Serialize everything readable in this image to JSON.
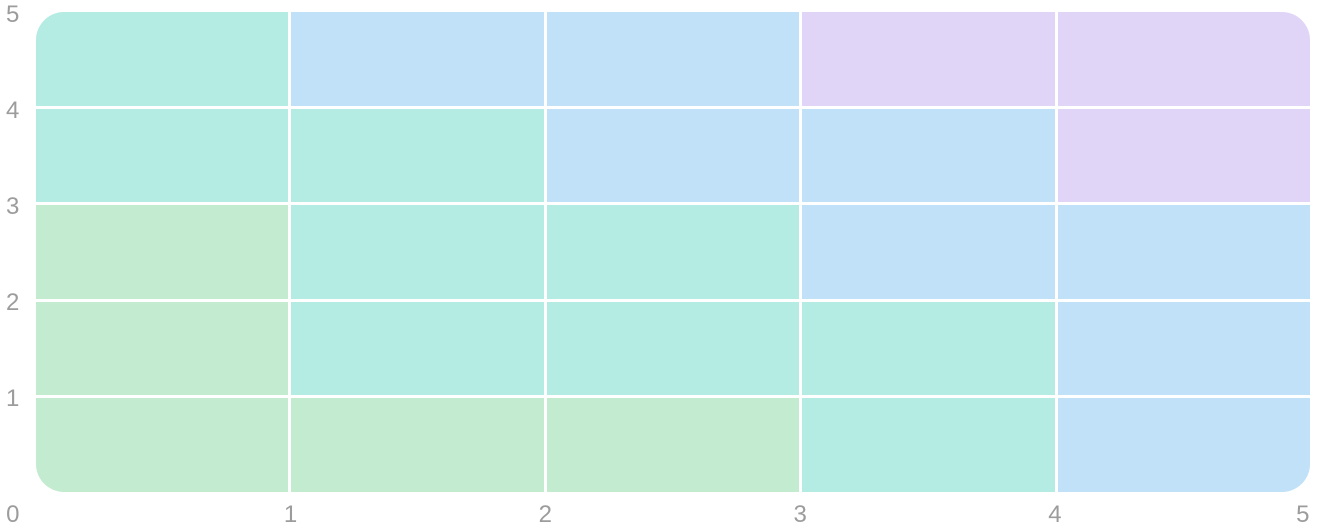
{
  "chart_data": {
    "type": "heatmap",
    "title": "",
    "xlabel": "",
    "ylabel": "",
    "x_range": [
      0,
      5
    ],
    "y_range": [
      0,
      5
    ],
    "x_tick_labels": [
      "0",
      "1",
      "2",
      "3",
      "4",
      "5"
    ],
    "y_tick_labels": [
      "5",
      "4",
      "3",
      "2",
      "1"
    ],
    "grid_on": true,
    "grid_line_color": "#ffffff",
    "legend_position": "none",
    "z_rows_top_to_bottom": [
      [
        2,
        3,
        3,
        4,
        4
      ],
      [
        2,
        2,
        3,
        3,
        4
      ],
      [
        1,
        2,
        2,
        3,
        3
      ],
      [
        1,
        2,
        2,
        2,
        3
      ],
      [
        1,
        1,
        1,
        2,
        3
      ]
    ],
    "level_colors": {
      "1": "#c3ebd0",
      "2": "#b4ebe3",
      "3": "#c0e1f8",
      "4": "#e1d5f7"
    },
    "level_names": {
      "1": "green",
      "2": "teal",
      "3": "light-blue",
      "4": "lavender"
    },
    "tick_color": "#9c9c9c",
    "background_color": "#ffffff"
  }
}
